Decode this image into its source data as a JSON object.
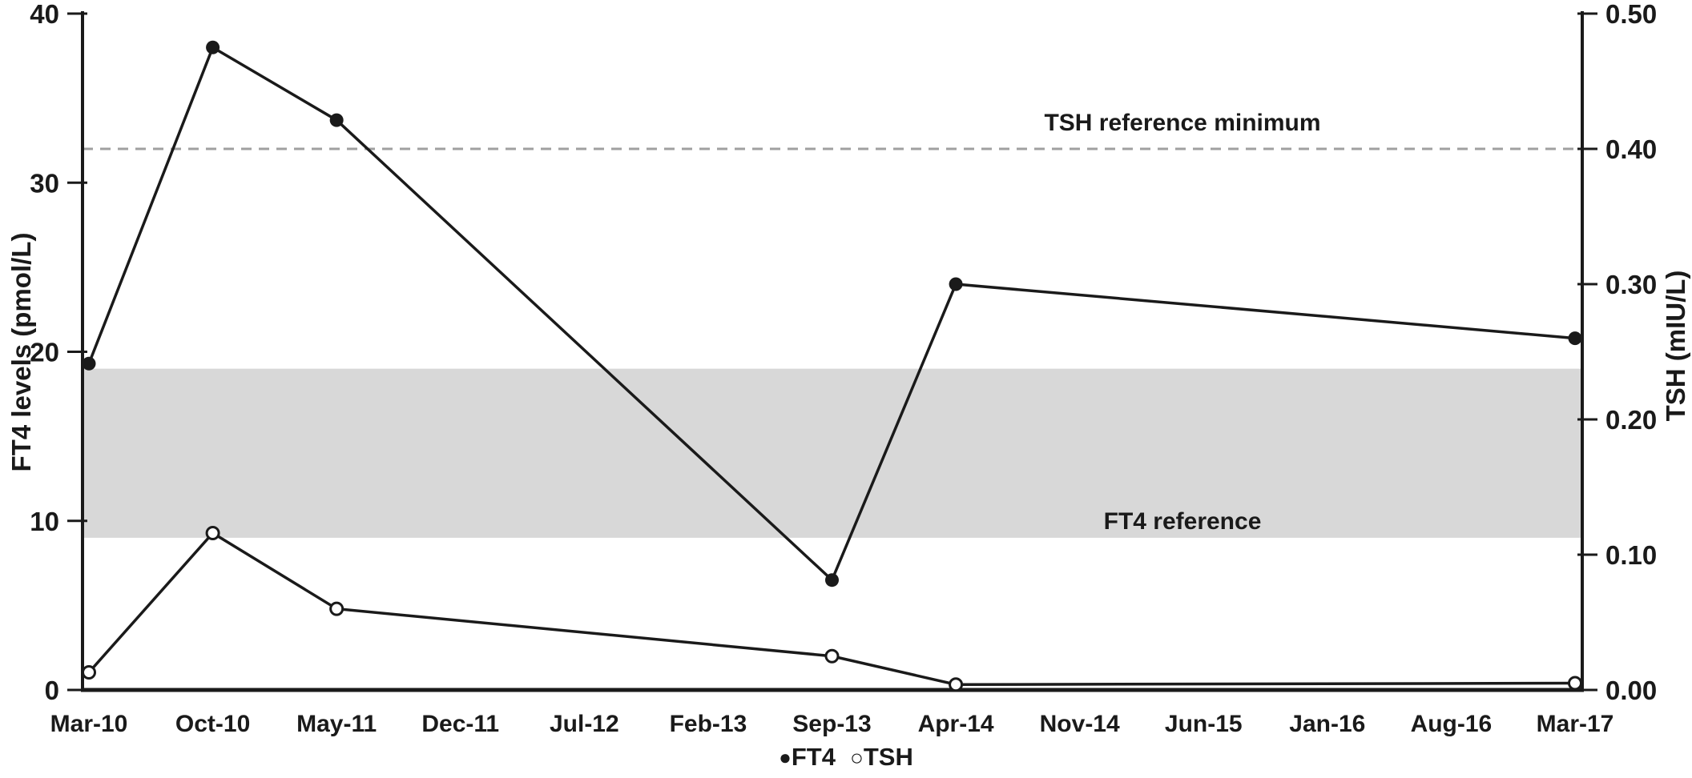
{
  "figure": {
    "background": "#ffffff",
    "ink_color": "#1a1a1a"
  },
  "chart_data": {
    "type": "line",
    "title": "",
    "grid": false,
    "x_categories": [
      "Mar-10",
      "Oct-10",
      "May-11",
      "Dec-11",
      "Jul-12",
      "Feb-13",
      "Sep-13",
      "Apr-14",
      "Nov-14",
      "Jun-15",
      "Jan-16",
      "Aug-16",
      "Mar-17"
    ],
    "left_axis": {
      "label": "FT4 levels (pmol/L)",
      "min": 0,
      "max": 40,
      "tick_values": [
        0,
        10,
        20,
        30,
        40
      ],
      "tick_labels": [
        "0",
        "10",
        "20",
        "30",
        "40"
      ]
    },
    "right_axis": {
      "label": "TSH (mIU/L)",
      "min": 0,
      "max": 0.5,
      "tick_values": [
        0,
        0.1,
        0.2,
        0.3,
        0.4,
        0.5
      ],
      "tick_labels": [
        "0.00",
        "0.10",
        "0.20",
        "0.30",
        "0.40",
        "0.50"
      ]
    },
    "series": [
      {
        "name": "FT4",
        "axis": "left",
        "marker": "filled-circle",
        "color": "#1a1a1a",
        "points": [
          {
            "x": "Mar-10",
            "y": 19.3
          },
          {
            "x": "Oct-10",
            "y": 38.0
          },
          {
            "x": "May-11",
            "y": 33.7
          },
          {
            "x": "Sep-13",
            "y": 6.5
          },
          {
            "x": "Apr-14",
            "y": 24.0
          },
          {
            "x": "Mar-17",
            "y": 20.8
          }
        ]
      },
      {
        "name": "TSH",
        "axis": "right",
        "marker": "open-circle",
        "color": "#1a1a1a",
        "points": [
          {
            "x": "Mar-10",
            "y": 0.013
          },
          {
            "x": "Oct-10",
            "y": 0.116
          },
          {
            "x": "May-11",
            "y": 0.06
          },
          {
            "x": "Sep-13",
            "y": 0.025
          },
          {
            "x": "Apr-14",
            "y": 0.004
          },
          {
            "x": "Mar-17",
            "y": 0.005
          }
        ]
      }
    ],
    "reference_band": {
      "label": "FT4 reference",
      "axis": "left",
      "from": 9,
      "to": 19,
      "color": "#d8d8d8"
    },
    "reference_line": {
      "label": "TSH reference minimum",
      "axis": "right",
      "value": 0.4,
      "style": "dashed",
      "color": "#a0a0a0"
    },
    "legend": {
      "position": "bottom-center",
      "items": [
        {
          "symbol": "●",
          "label": "FT4"
        },
        {
          "symbol": "○",
          "label": "TSH"
        }
      ]
    }
  }
}
